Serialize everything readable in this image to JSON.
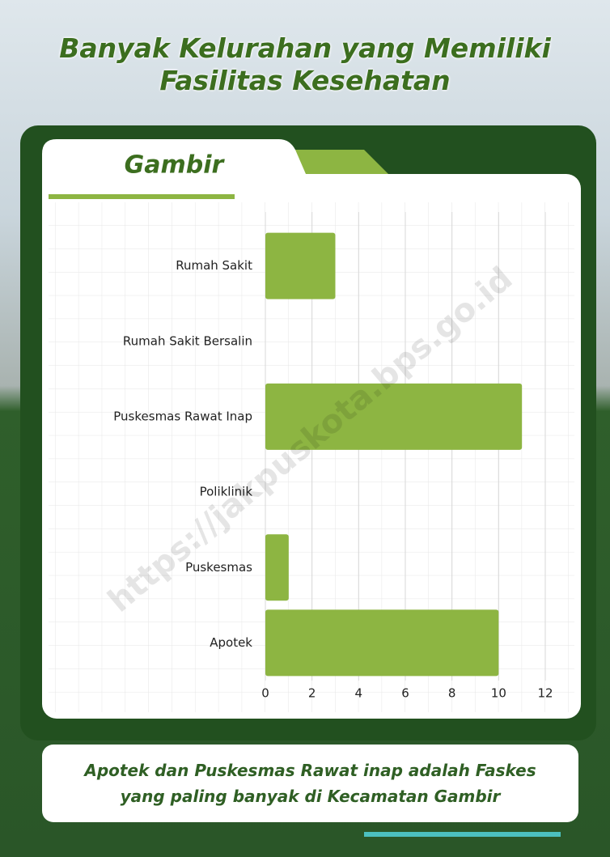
{
  "chart_data": {
    "type": "bar",
    "orientation": "horizontal",
    "title": "Banyak Kelurahan yang Memiliki Fasilitas Kesehatan",
    "subtitle": "Gambir",
    "categories": [
      "Rumah Sakit",
      "Rumah Sakit Bersalin",
      "Puskesmas Rawat Inap",
      "Poliklinik",
      "Puskesmas",
      "Apotek"
    ],
    "values": [
      3,
      0,
      11,
      0,
      1,
      10
    ],
    "color": "#8db542",
    "xlim": [
      0,
      12
    ],
    "xticks": [
      0,
      2,
      4,
      6,
      8,
      10,
      12
    ],
    "grid": true,
    "annotation": "Apotek dan Puskesmas Rawat inap adalah Faskes yang paling banyak di Kecamatan Gambir",
    "watermark": "https://jakpuskota.bps.go.id"
  }
}
